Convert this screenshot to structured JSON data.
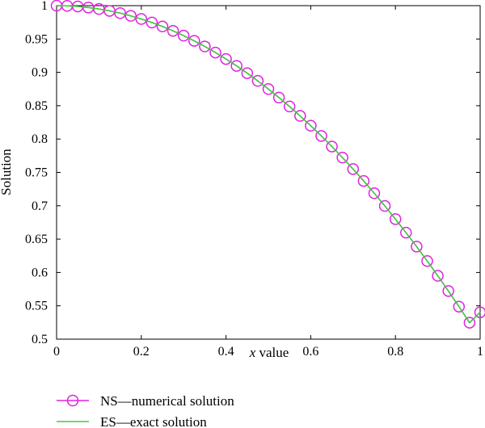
{
  "chart_data": {
    "type": "line",
    "title": "",
    "xlabel": "value",
    "xlabel_italic_prefix": "x",
    "ylabel": "Solution",
    "xlim": [
      0,
      1
    ],
    "ylim": [
      0.5,
      1
    ],
    "xticks": [
      0,
      0.2,
      0.4,
      0.6,
      0.8,
      1
    ],
    "xtick_labels": [
      "0",
      "0.2",
      "0.4",
      "0.6",
      "0.8",
      "1"
    ],
    "yticks": [
      0.5,
      0.55,
      0.6,
      0.65,
      0.7,
      0.75,
      0.8,
      0.85,
      0.9,
      0.95,
      1
    ],
    "ytick_labels": [
      "0.5",
      "0.55",
      "0.6",
      "0.65",
      "0.7",
      "0.75",
      "0.8",
      "0.85",
      "0.9",
      "0.95",
      "1"
    ],
    "grid": false,
    "legend_position": "bottom-left, below plot",
    "x": [
      0,
      0.025,
      0.05,
      0.075,
      0.1,
      0.125,
      0.15,
      0.175,
      0.2,
      0.225,
      0.25,
      0.275,
      0.3,
      0.325,
      0.35,
      0.375,
      0.4,
      0.425,
      0.45,
      0.475,
      0.5,
      0.525,
      0.55,
      0.575,
      0.6,
      0.625,
      0.65,
      0.675,
      0.7,
      0.725,
      0.75,
      0.775,
      0.8,
      0.825,
      0.85,
      0.875,
      0.9,
      0.925,
      0.95,
      0.975,
      1
    ],
    "series": [
      {
        "name": "NS—numerical solution",
        "style": "markers",
        "marker": "circle",
        "color": "#e020e0",
        "values": [
          1.0,
          0.9997,
          0.9988,
          0.9972,
          0.995,
          0.9922,
          0.9888,
          0.9847,
          0.98,
          0.9747,
          0.9688,
          0.9622,
          0.955,
          0.9472,
          0.9388,
          0.9297,
          0.92,
          0.9097,
          0.8988,
          0.8872,
          0.875,
          0.8622,
          0.8488,
          0.8347,
          0.82,
          0.8047,
          0.7888,
          0.7722,
          0.755,
          0.7372,
          0.7188,
          0.6997,
          0.68,
          0.6597,
          0.6388,
          0.6172,
          0.595,
          0.5722,
          0.5488,
          0.5247,
          0.5403
        ]
      },
      {
        "name": "ES—exact solution",
        "style": "line",
        "color": "#40cc40",
        "values": [
          1.0,
          0.9997,
          0.9988,
          0.9972,
          0.995,
          0.9922,
          0.9888,
          0.9847,
          0.98,
          0.9747,
          0.9688,
          0.9622,
          0.955,
          0.9472,
          0.9388,
          0.9297,
          0.92,
          0.9097,
          0.8988,
          0.8872,
          0.875,
          0.8622,
          0.8488,
          0.8347,
          0.82,
          0.8047,
          0.7888,
          0.7722,
          0.755,
          0.7372,
          0.7188,
          0.6997,
          0.68,
          0.6597,
          0.6388,
          0.6172,
          0.595,
          0.5722,
          0.5488,
          0.5247,
          0.5403
        ]
      }
    ]
  }
}
